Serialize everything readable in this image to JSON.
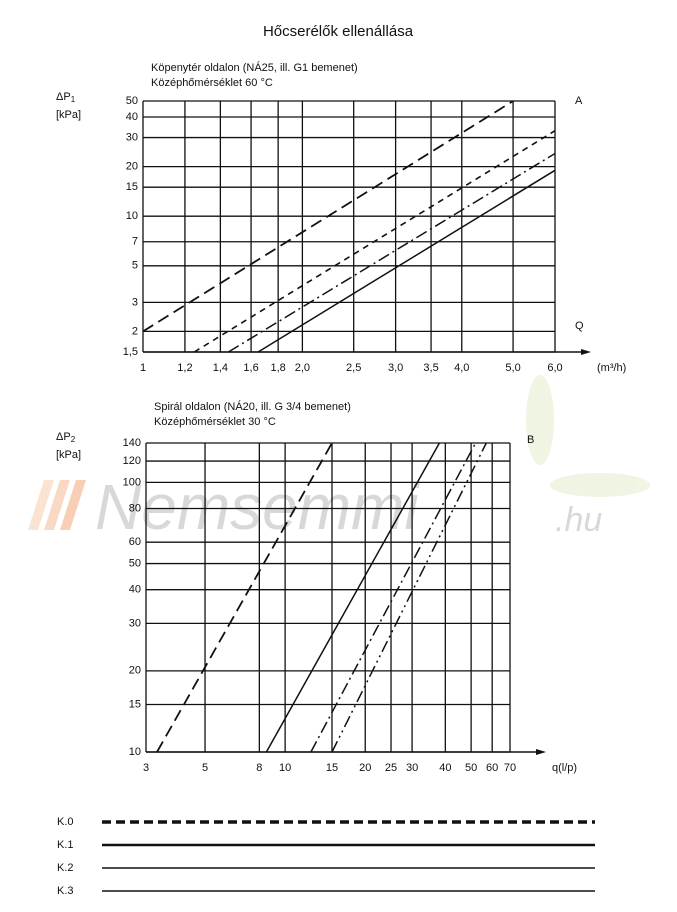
{
  "title": "Hőcserélők ellenállása",
  "watermark": "Nemsemmi",
  "watermark_suffix": ".hu",
  "legend": [
    {
      "label": "K.0",
      "style": "dashed-thick"
    },
    {
      "label": "K.1",
      "style": "solid-thick"
    },
    {
      "label": "K.2",
      "style": "solid"
    },
    {
      "label": "K.3",
      "style": "solid"
    }
  ],
  "chart_data": [
    {
      "type": "line",
      "subtitle": [
        "Köpenytér oldalon (NÁ25, ill. G1 bemenet)",
        "Középhőmérséklet 60 °C"
      ],
      "y_label": "ΔP",
      "y_label_sub": "1",
      "y_unit": "[kPa]",
      "x_unit": "(m³/h)",
      "labels": [
        "A",
        "Q"
      ],
      "log_x": true,
      "log_y": true,
      "grid": true,
      "xlim": [
        1,
        6
      ],
      "ylim": [
        1.5,
        50
      ],
      "xticks": [
        1,
        {
          "value": 1.2,
          "label": "1,2"
        },
        {
          "value": 1.4,
          "label": "1,4"
        },
        {
          "value": 1.6,
          "label": "1,6"
        },
        {
          "value": 1.8,
          "label": "1,8"
        },
        {
          "value": 2,
          "label": "2,0"
        },
        {
          "value": 2.5,
          "label": "2,5"
        },
        {
          "value": 3,
          "label": "3,0"
        },
        {
          "value": 3.5,
          "label": "3,5"
        },
        {
          "value": 4,
          "label": "4,0"
        },
        {
          "value": 5,
          "label": "5,0"
        },
        {
          "value": 6,
          "label": "6,0"
        }
      ],
      "yticks": [
        {
          "value": 1.5,
          "label": "1,5"
        },
        2,
        3,
        5,
        7,
        10,
        15,
        20,
        30,
        40,
        50
      ],
      "series": [
        {
          "style": "dashed",
          "color": "#111",
          "x": [
            1,
            5
          ],
          "values": [
            2,
            50
          ]
        },
        {
          "style": "short-dashed",
          "color": "#111",
          "x": [
            1.25,
            6
          ],
          "values": [
            1.5,
            33
          ]
        },
        {
          "style": "dash-dot",
          "color": "#111",
          "x": [
            1.45,
            6
          ],
          "values": [
            1.5,
            24
          ]
        },
        {
          "style": "solid",
          "color": "#111",
          "x": [
            1.65,
            6
          ],
          "values": [
            1.5,
            19
          ]
        }
      ]
    },
    {
      "type": "line",
      "subtitle": [
        "Spirál oldalon (NÁ20, ill. G 3/4 bemenet)",
        "Középhőmérséklet 30 °C"
      ],
      "y_label": "ΔP",
      "y_label_sub": "2",
      "y_unit": "[kPa]",
      "x_unit": "q(l/p)",
      "labels": [
        "B"
      ],
      "log_x": true,
      "log_y": true,
      "grid": true,
      "xlim": [
        3,
        70
      ],
      "ylim": [
        10,
        140
      ],
      "xticks": [
        3,
        5,
        8,
        10,
        15,
        20,
        25,
        30,
        40,
        50,
        60,
        70
      ],
      "yticks": [
        10,
        15,
        20,
        30,
        40,
        50,
        60,
        80,
        100,
        120,
        140
      ],
      "series": [
        {
          "style": "dashed",
          "color": "#111",
          "x": [
            3.3,
            15
          ],
          "values": [
            10,
            140
          ]
        },
        {
          "style": "solid",
          "color": "#111",
          "x": [
            8.5,
            38
          ],
          "values": [
            10,
            140
          ]
        },
        {
          "style": "dash-dot",
          "color": "#111",
          "x": [
            12.5,
            52
          ],
          "values": [
            10,
            140
          ]
        },
        {
          "style": "dash-dot-dot",
          "color": "#111",
          "x": [
            15,
            57
          ],
          "values": [
            10,
            140
          ]
        }
      ]
    }
  ]
}
